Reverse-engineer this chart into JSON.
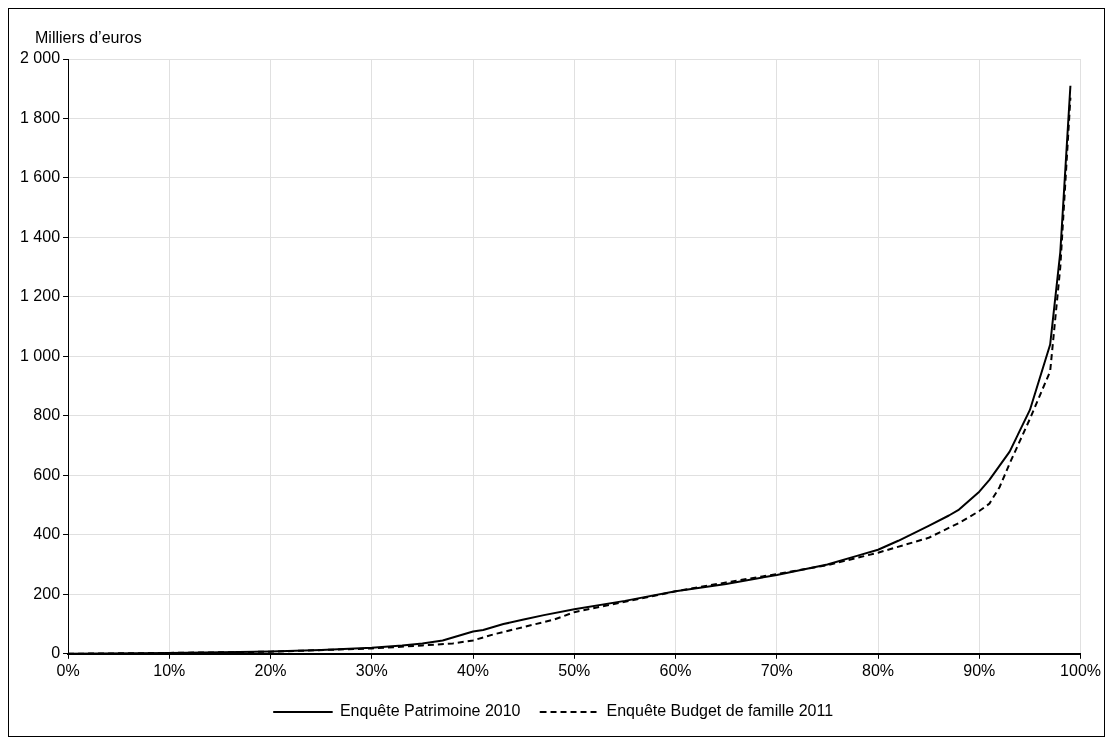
{
  "chart_data": {
    "type": "line",
    "ylabel": "Milliers d’euros",
    "xlim": [
      0,
      100
    ],
    "xticks": [
      {
        "value": 0,
        "label": "0%"
      },
      {
        "value": 10,
        "label": "10%"
      },
      {
        "value": 20,
        "label": "20%"
      },
      {
        "value": 30,
        "label": "30%"
      },
      {
        "value": 40,
        "label": "40%"
      },
      {
        "value": 50,
        "label": "50%"
      },
      {
        "value": 60,
        "label": "60%"
      },
      {
        "value": 70,
        "label": "70%"
      },
      {
        "value": 80,
        "label": "80%"
      },
      {
        "value": 90,
        "label": "90%"
      },
      {
        "value": 100,
        "label": "100%"
      }
    ],
    "ylim": [
      0,
      2000
    ],
    "yticks": [
      0,
      200,
      400,
      600,
      800,
      {
        "value": 1000,
        "label": "1 000"
      },
      {
        "value": 1200,
        "label": "1 200"
      },
      {
        "value": 1400,
        "label": "1 400"
      },
      {
        "value": 1600,
        "label": "1 600"
      },
      {
        "value": 1800,
        "label": "1 800"
      },
      {
        "value": 2000,
        "label": "2 000"
      }
    ],
    "grid": true,
    "legend": "bottom",
    "marker": "none",
    "series": [
      {
        "name": "Enquête Patrimoine 2010",
        "color": "#000000",
        "line_style": "solid",
        "x": [
          0,
          10,
          20,
          25,
          30,
          33,
          35,
          37,
          38,
          39,
          40,
          41,
          43,
          45,
          47,
          50,
          55,
          60,
          65,
          70,
          75,
          78,
          80,
          82,
          85,
          87,
          88,
          90,
          91,
          93,
          95,
          97,
          98,
          99
        ],
        "values": [
          0,
          3,
          8,
          13,
          20,
          28,
          35,
          45,
          55,
          65,
          75,
          80,
          100,
          115,
          130,
          150,
          178,
          210,
          235,
          265,
          300,
          330,
          350,
          380,
          430,
          465,
          485,
          545,
          585,
          680,
          820,
          1040,
          1350,
          1910
        ]
      },
      {
        "name": "Enquête Budget de famille 2011",
        "color": "#000000",
        "line_style": "dashed",
        "x": [
          0,
          10,
          20,
          30,
          35,
          38,
          40,
          42,
          45,
          48,
          50,
          55,
          60,
          65,
          70,
          75,
          80,
          85,
          88,
          90,
          91,
          92,
          93,
          95,
          96,
          97,
          98,
          99
        ],
        "values": [
          0,
          3,
          7,
          18,
          28,
          35,
          45,
          65,
          90,
          115,
          140,
          175,
          210,
          240,
          268,
          298,
          340,
          390,
          440,
          480,
          505,
          560,
          640,
          790,
          870,
          950,
          1300,
          1870
        ]
      }
    ]
  }
}
